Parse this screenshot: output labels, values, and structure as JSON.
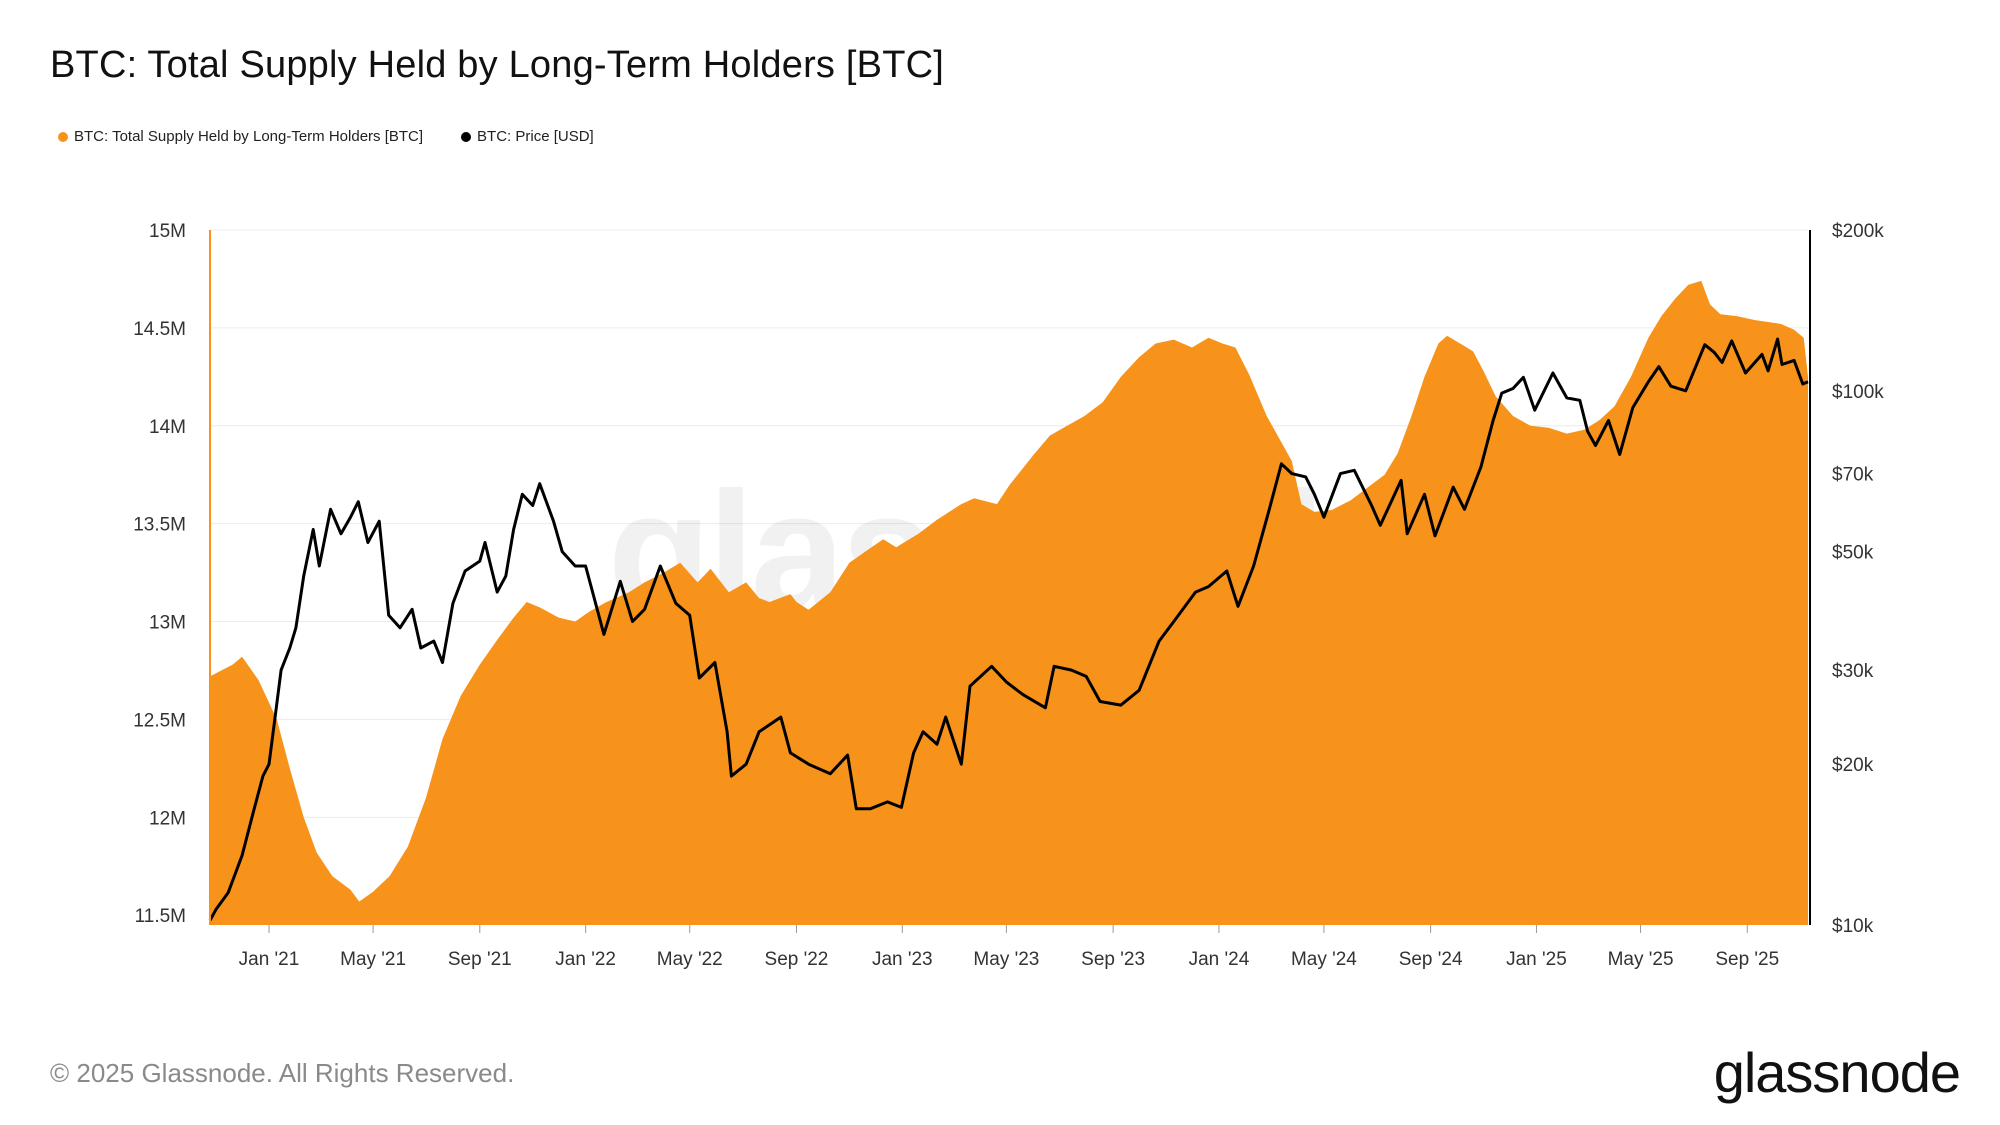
{
  "header": {
    "title": "BTC: Total Supply Held by Long-Term Holders [BTC]"
  },
  "legend": [
    {
      "label": "BTC: Total Supply Held by Long-Term Holders [BTC]",
      "color": "#F7931A"
    },
    {
      "label": "BTC: Price [USD]",
      "color": "#000000"
    }
  ],
  "footer": {
    "copyright": "© 2025 Glassnode. All Rights Reserved.",
    "logo": "glassnode",
    "watermark": "glassnode"
  },
  "chart_data": {
    "type": "area",
    "x_ticks": [
      "Jan '21",
      "May '21",
      "Sep '21",
      "Jan '22",
      "May '22",
      "Sep '22",
      "Jan '23",
      "May '23",
      "Sep '23",
      "Jan '24",
      "May '24",
      "Sep '24",
      "Jan '25",
      "May '25",
      "Sep '25"
    ],
    "x_range": [
      "2020-10-25",
      "2025-11-10"
    ],
    "y_left": {
      "ticks": [
        "11.5M",
        "12M",
        "12.5M",
        "13M",
        "13.5M",
        "14M",
        "14.5M",
        "15M"
      ],
      "tick_values": [
        11500000,
        12000000,
        12500000,
        13000000,
        13500000,
        14000000,
        14500000,
        15000000
      ],
      "range": [
        11450000,
        15000000
      ]
    },
    "y_right": {
      "scale": "log",
      "ticks": [
        "$10k",
        "$20k",
        "$30k",
        "$50k",
        "$70k",
        "$100k",
        "$200k"
      ],
      "tick_values": [
        10000,
        20000,
        30000,
        50000,
        70000,
        100000,
        200000
      ],
      "range": [
        10000,
        200000
      ]
    },
    "grid": true,
    "legend_position": "top-left",
    "series": [
      {
        "name": "BTC: Total Supply Held by Long-Term Holders [BTC]",
        "axis": "left",
        "color": "#F7931A",
        "points": [
          [
            "2020-10-25",
            12720000
          ],
          [
            "2020-11-20",
            12780000
          ],
          [
            "2020-12-01",
            12820000
          ],
          [
            "2020-12-20",
            12700000
          ],
          [
            "2021-01-10",
            12500000
          ],
          [
            "2021-01-25",
            12250000
          ],
          [
            "2021-02-10",
            12000000
          ],
          [
            "2021-02-25",
            11820000
          ],
          [
            "2021-03-15",
            11700000
          ],
          [
            "2021-04-05",
            11630000
          ],
          [
            "2021-04-15",
            11570000
          ],
          [
            "2021-05-01",
            11620000
          ],
          [
            "2021-05-20",
            11700000
          ],
          [
            "2021-06-10",
            11850000
          ],
          [
            "2021-07-01",
            12100000
          ],
          [
            "2021-07-20",
            12400000
          ],
          [
            "2021-08-10",
            12620000
          ],
          [
            "2021-09-01",
            12780000
          ],
          [
            "2021-09-20",
            12900000
          ],
          [
            "2021-10-10",
            13020000
          ],
          [
            "2021-10-25",
            13100000
          ],
          [
            "2021-11-10",
            13070000
          ],
          [
            "2021-12-01",
            13020000
          ],
          [
            "2021-12-20",
            13000000
          ],
          [
            "2022-01-05",
            13050000
          ],
          [
            "2022-01-25",
            13100000
          ],
          [
            "2022-02-20",
            13150000
          ],
          [
            "2022-03-10",
            13200000
          ],
          [
            "2022-04-01",
            13250000
          ],
          [
            "2022-04-20",
            13300000
          ],
          [
            "2022-05-10",
            13200000
          ],
          [
            "2022-05-25",
            13270000
          ],
          [
            "2022-06-15",
            13150000
          ],
          [
            "2022-07-05",
            13200000
          ],
          [
            "2022-07-20",
            13120000
          ],
          [
            "2022-08-01",
            13100000
          ],
          [
            "2022-08-25",
            13140000
          ],
          [
            "2022-09-01",
            13100000
          ],
          [
            "2022-09-15",
            13060000
          ],
          [
            "2022-10-10",
            13150000
          ],
          [
            "2022-11-01",
            13300000
          ],
          [
            "2022-11-20",
            13360000
          ],
          [
            "2022-12-10",
            13420000
          ],
          [
            "2022-12-25",
            13380000
          ],
          [
            "2023-01-20",
            13450000
          ],
          [
            "2023-02-10",
            13520000
          ],
          [
            "2023-03-10",
            13600000
          ],
          [
            "2023-03-25",
            13630000
          ],
          [
            "2023-04-20",
            13600000
          ],
          [
            "2023-05-05",
            13700000
          ],
          [
            "2023-06-01",
            13850000
          ],
          [
            "2023-06-20",
            13950000
          ],
          [
            "2023-07-10",
            14000000
          ],
          [
            "2023-07-30",
            14050000
          ],
          [
            "2023-08-20",
            14120000
          ],
          [
            "2023-09-10",
            14250000
          ],
          [
            "2023-10-01",
            14350000
          ],
          [
            "2023-10-20",
            14420000
          ],
          [
            "2023-11-10",
            14440000
          ],
          [
            "2023-12-01",
            14400000
          ],
          [
            "2023-12-20",
            14450000
          ],
          [
            "2024-01-05",
            14420000
          ],
          [
            "2024-01-20",
            14400000
          ],
          [
            "2024-02-05",
            14260000
          ],
          [
            "2024-02-25",
            14050000
          ],
          [
            "2024-03-15",
            13900000
          ],
          [
            "2024-03-25",
            13820000
          ],
          [
            "2024-04-05",
            13600000
          ],
          [
            "2024-04-20",
            13560000
          ],
          [
            "2024-05-10",
            13570000
          ],
          [
            "2024-06-01",
            13620000
          ],
          [
            "2024-06-25",
            13700000
          ],
          [
            "2024-07-10",
            13750000
          ],
          [
            "2024-07-25",
            13860000
          ],
          [
            "2024-08-10",
            14050000
          ],
          [
            "2024-08-25",
            14250000
          ],
          [
            "2024-09-10",
            14420000
          ],
          [
            "2024-09-20",
            14460000
          ],
          [
            "2024-10-05",
            14420000
          ],
          [
            "2024-10-20",
            14380000
          ],
          [
            "2024-11-01",
            14280000
          ],
          [
            "2024-11-15",
            14150000
          ],
          [
            "2024-12-05",
            14050000
          ],
          [
            "2024-12-25",
            14000000
          ],
          [
            "2025-01-15",
            13990000
          ],
          [
            "2025-02-05",
            13960000
          ],
          [
            "2025-02-25",
            13980000
          ],
          [
            "2025-03-15",
            14030000
          ],
          [
            "2025-04-01",
            14100000
          ],
          [
            "2025-04-20",
            14250000
          ],
          [
            "2025-05-10",
            14450000
          ],
          [
            "2025-05-25",
            14560000
          ],
          [
            "2025-06-10",
            14650000
          ],
          [
            "2025-06-25",
            14720000
          ],
          [
            "2025-07-10",
            14740000
          ],
          [
            "2025-07-20",
            14620000
          ],
          [
            "2025-08-01",
            14570000
          ],
          [
            "2025-08-20",
            14560000
          ],
          [
            "2025-09-10",
            14540000
          ],
          [
            "2025-09-25",
            14530000
          ],
          [
            "2025-10-10",
            14520000
          ],
          [
            "2025-10-25",
            14490000
          ],
          [
            "2025-11-05",
            14450000
          ],
          [
            "2025-11-10",
            14250000
          ]
        ]
      },
      {
        "name": "BTC: Price [USD]",
        "axis": "right",
        "color": "#000000",
        "points": [
          [
            "2020-10-25",
            10200
          ],
          [
            "2020-11-01",
            10700
          ],
          [
            "2020-11-15",
            11500
          ],
          [
            "2020-12-01",
            13500
          ],
          [
            "2020-12-15",
            16500
          ],
          [
            "2020-12-25",
            19000
          ],
          [
            "2021-01-01",
            20000
          ],
          [
            "2021-01-08",
            24500
          ],
          [
            "2021-01-15",
            30000
          ],
          [
            "2021-01-25",
            33000
          ],
          [
            "2021-02-01",
            36000
          ],
          [
            "2021-02-10",
            45000
          ],
          [
            "2021-02-21",
            55000
          ],
          [
            "2021-02-28",
            47000
          ],
          [
            "2021-03-13",
            60000
          ],
          [
            "2021-03-25",
            54000
          ],
          [
            "2021-04-05",
            58000
          ],
          [
            "2021-04-14",
            62000
          ],
          [
            "2021-04-25",
            52000
          ],
          [
            "2021-05-08",
            57000
          ],
          [
            "2021-05-19",
            38000
          ],
          [
            "2021-06-01",
            36000
          ],
          [
            "2021-06-15",
            39000
          ],
          [
            "2021-06-25",
            33000
          ],
          [
            "2021-07-10",
            34000
          ],
          [
            "2021-07-20",
            31000
          ],
          [
            "2021-08-01",
            40000
          ],
          [
            "2021-08-15",
            46000
          ],
          [
            "2021-09-01",
            48000
          ],
          [
            "2021-09-07",
            52000
          ],
          [
            "2021-09-21",
            42000
          ],
          [
            "2021-10-01",
            45000
          ],
          [
            "2021-10-10",
            55000
          ],
          [
            "2021-10-20",
            64000
          ],
          [
            "2021-11-01",
            61000
          ],
          [
            "2021-11-09",
            67000
          ],
          [
            "2021-11-25",
            57000
          ],
          [
            "2021-12-05",
            50000
          ],
          [
            "2021-12-20",
            47000
          ],
          [
            "2022-01-01",
            47000
          ],
          [
            "2022-01-22",
            35000
          ],
          [
            "2022-02-10",
            44000
          ],
          [
            "2022-02-24",
            37000
          ],
          [
            "2022-03-10",
            39000
          ],
          [
            "2022-03-28",
            47000
          ],
          [
            "2022-04-15",
            40000
          ],
          [
            "2022-05-01",
            38000
          ],
          [
            "2022-05-12",
            29000
          ],
          [
            "2022-05-30",
            31000
          ],
          [
            "2022-06-13",
            23000
          ],
          [
            "2022-06-18",
            19000
          ],
          [
            "2022-07-05",
            20000
          ],
          [
            "2022-07-20",
            23000
          ],
          [
            "2022-08-14",
            24500
          ],
          [
            "2022-08-25",
            21000
          ],
          [
            "2022-09-15",
            20000
          ],
          [
            "2022-10-10",
            19200
          ],
          [
            "2022-10-30",
            20800
          ],
          [
            "2022-11-09",
            16500
          ],
          [
            "2022-11-25",
            16500
          ],
          [
            "2022-12-15",
            17000
          ],
          [
            "2022-12-31",
            16600
          ],
          [
            "2023-01-14",
            21000
          ],
          [
            "2023-01-25",
            23000
          ],
          [
            "2023-02-10",
            21800
          ],
          [
            "2023-02-20",
            24500
          ],
          [
            "2023-03-10",
            20000
          ],
          [
            "2023-03-20",
            28000
          ],
          [
            "2023-04-14",
            30500
          ],
          [
            "2023-05-01",
            28500
          ],
          [
            "2023-05-20",
            27000
          ],
          [
            "2023-06-15",
            25500
          ],
          [
            "2023-06-25",
            30500
          ],
          [
            "2023-07-15",
            30000
          ],
          [
            "2023-08-01",
            29200
          ],
          [
            "2023-08-17",
            26200
          ],
          [
            "2023-09-10",
            25800
          ],
          [
            "2023-10-01",
            27500
          ],
          [
            "2023-10-24",
            34000
          ],
          [
            "2023-11-10",
            37000
          ],
          [
            "2023-12-05",
            42000
          ],
          [
            "2023-12-20",
            43000
          ],
          [
            "2024-01-10",
            46000
          ],
          [
            "2024-01-23",
            39500
          ],
          [
            "2024-02-10",
            47000
          ],
          [
            "2024-02-28",
            60000
          ],
          [
            "2024-03-13",
            73000
          ],
          [
            "2024-03-25",
            70000
          ],
          [
            "2024-04-10",
            69000
          ],
          [
            "2024-04-20",
            64000
          ],
          [
            "2024-05-01",
            58000
          ],
          [
            "2024-05-20",
            70000
          ],
          [
            "2024-06-05",
            71000
          ],
          [
            "2024-06-25",
            61000
          ],
          [
            "2024-07-05",
            56000
          ],
          [
            "2024-07-29",
            68000
          ],
          [
            "2024-08-05",
            54000
          ],
          [
            "2024-08-25",
            64000
          ],
          [
            "2024-09-06",
            53500
          ],
          [
            "2024-09-27",
            66000
          ],
          [
            "2024-10-10",
            60000
          ],
          [
            "2024-10-29",
            72000
          ],
          [
            "2024-11-12",
            88000
          ],
          [
            "2024-11-22",
            99000
          ],
          [
            "2024-12-05",
            101000
          ],
          [
            "2024-12-17",
            106000
          ],
          [
            "2024-12-30",
            92000
          ],
          [
            "2025-01-20",
            108000
          ],
          [
            "2025-02-05",
            97000
          ],
          [
            "2025-02-20",
            96000
          ],
          [
            "2025-03-01",
            84000
          ],
          [
            "2025-03-10",
            79000
          ],
          [
            "2025-03-25",
            88000
          ],
          [
            "2025-04-07",
            76000
          ],
          [
            "2025-04-22",
            93000
          ],
          [
            "2025-05-10",
            104000
          ],
          [
            "2025-05-22",
            111000
          ],
          [
            "2025-06-05",
            102000
          ],
          [
            "2025-06-22",
            100000
          ],
          [
            "2025-07-14",
            122000
          ],
          [
            "2025-07-25",
            118000
          ],
          [
            "2025-08-03",
            113000
          ],
          [
            "2025-08-14",
            124000
          ],
          [
            "2025-08-30",
            108000
          ],
          [
            "2025-09-18",
            117000
          ],
          [
            "2025-09-25",
            109000
          ],
          [
            "2025-10-06",
            125000
          ],
          [
            "2025-10-11",
            112000
          ],
          [
            "2025-10-25",
            114000
          ],
          [
            "2025-11-04",
            103000
          ],
          [
            "2025-11-10",
            104000
          ]
        ]
      }
    ]
  }
}
